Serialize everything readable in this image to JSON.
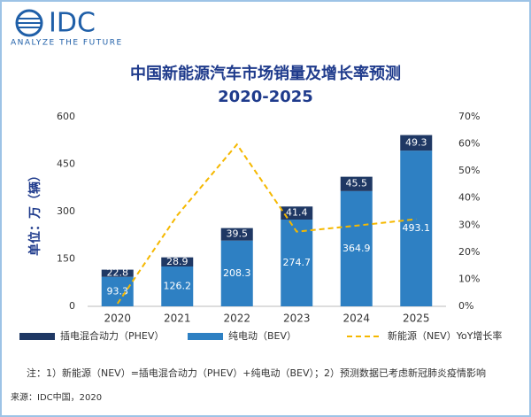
{
  "logo": {
    "name": "IDC",
    "tagline": "ANALYZE THE FUTURE"
  },
  "chart_data": {
    "type": "bar",
    "stacked": true,
    "title": "中国新能源汽车市场销量及增长率预测",
    "subtitle": "2020-2025",
    "y_label": "单位：万（辆）",
    "categories": [
      "2020",
      "2021",
      "2022",
      "2023",
      "2024",
      "2025"
    ],
    "series": [
      {
        "name": "插电混合动力（PHEV）",
        "type": "bar",
        "color": "#1f3864",
        "values": [
          22.8,
          28.9,
          39.5,
          41.4,
          45.5,
          49.3
        ]
      },
      {
        "name": "纯电动（BEV）",
        "type": "bar",
        "color": "#2e80c3",
        "values": [
          93.3,
          126.2,
          208.3,
          274.7,
          364.9,
          493.1
        ]
      },
      {
        "name": "新能源（NEV）YoY增长率",
        "type": "line",
        "axis": "y2",
        "color": "#f5b800",
        "values": [
          1,
          33.6,
          59.8,
          27.6,
          29.8,
          32.2
        ]
      }
    ],
    "ylim": [
      0,
      600
    ],
    "yticks": [
      0,
      150,
      300,
      450,
      600
    ],
    "y2lim": [
      0,
      70
    ],
    "y2ticks": [
      {
        "value": 0,
        "label": "0%"
      },
      {
        "value": 10,
        "label": "10%"
      },
      {
        "value": 20,
        "label": "20%"
      },
      {
        "value": 30,
        "label": "30%"
      },
      {
        "value": 40,
        "label": "40%"
      },
      {
        "value": 50,
        "label": "50%"
      },
      {
        "value": 60,
        "label": "60%"
      },
      {
        "value": 70,
        "label": "70%"
      }
    ],
    "grid": false
  },
  "note": "注：1）新能源（NEV）=插电混合动力（PHEV）+纯电动（BEV）；2）预测数据已考虑新冠肺炎疫情影响",
  "source": "来源：IDC中国，2020"
}
